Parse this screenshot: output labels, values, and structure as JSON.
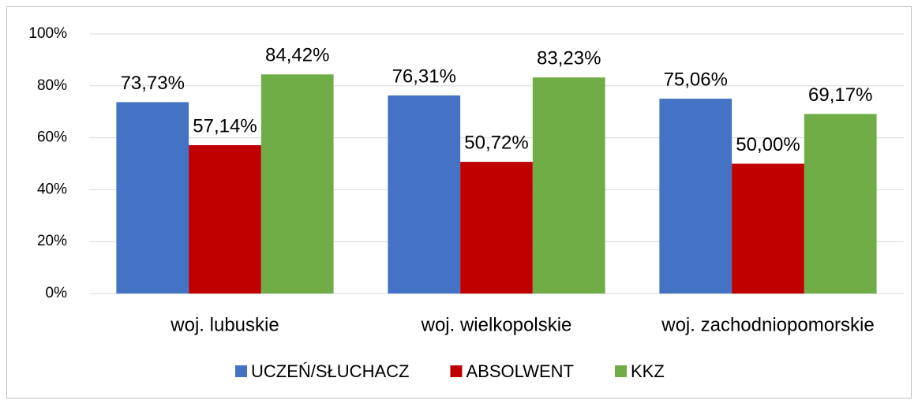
{
  "chart_data": {
    "type": "bar",
    "categories": [
      "woj. lubuskie",
      "woj. wielkopolskie",
      "woj. zachodniopomorskie"
    ],
    "series": [
      {
        "name": "UCZEŃ/SŁUCHACZ",
        "color": "#4472c4",
        "values": [
          73.73,
          76.31,
          75.06
        ],
        "value_labels": [
          "73,73%",
          "76,31%",
          "75,06%"
        ]
      },
      {
        "name": "ABSOLWENT",
        "color": "#c00000",
        "values": [
          57.14,
          50.72,
          50.0
        ],
        "value_labels": [
          "57,14%",
          "50,72%",
          "50,00%"
        ]
      },
      {
        "name": "KKZ",
        "color": "#70ad47",
        "values": [
          84.42,
          83.23,
          69.17
        ],
        "value_labels": [
          "84,42%",
          "83,23%",
          "69,17%"
        ]
      }
    ],
    "ylim": [
      0,
      100
    ],
    "yticks": [
      {
        "value": 0,
        "label": "0%"
      },
      {
        "value": 20,
        "label": "20%"
      },
      {
        "value": 40,
        "label": "40%"
      },
      {
        "value": 60,
        "label": "60%"
      },
      {
        "value": 80,
        "label": "80%"
      },
      {
        "value": 100,
        "label": "100%"
      }
    ],
    "grid": true,
    "legend": "bottom"
  }
}
